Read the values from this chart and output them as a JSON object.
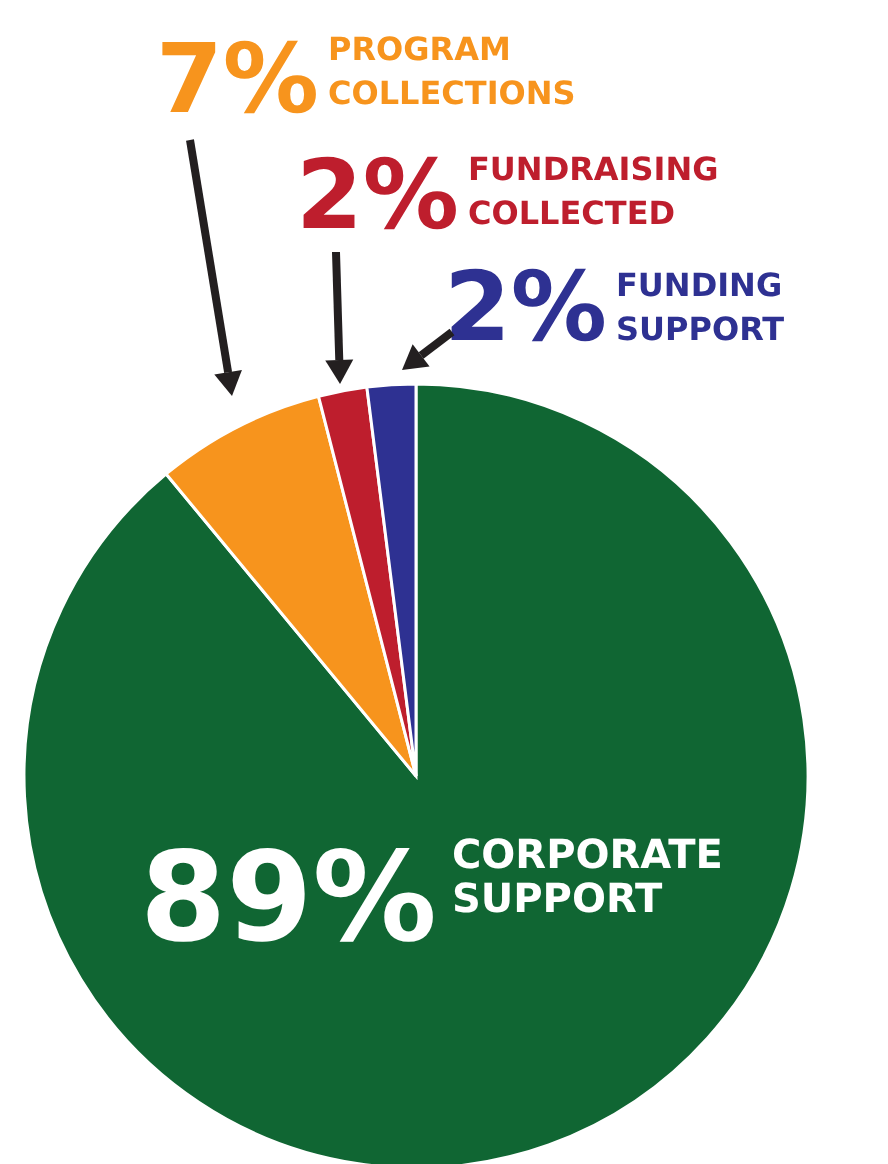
{
  "chart_data": {
    "type": "pie",
    "categories": [
      "CORPORATE SUPPORT",
      "PROGRAM COLLECTIONS",
      "FUNDRAISING COLLECTED",
      "FUNDING SUPPORT"
    ],
    "values": [
      89,
      7,
      2,
      2
    ],
    "colors": [
      "#106633",
      "#f7941d",
      "#be1e2d",
      "#2e3192"
    ],
    "value_labels": [
      "89%",
      "7%",
      "2%",
      "2%"
    ]
  }
}
